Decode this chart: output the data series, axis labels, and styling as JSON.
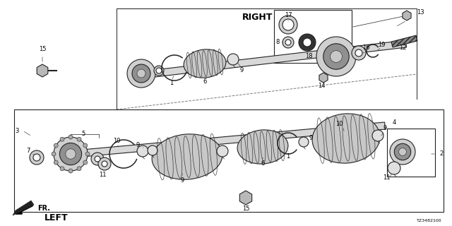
{
  "bg_color": "#ffffff",
  "line_color": "#222222",
  "diagram_id": "TZ3482100",
  "figsize": [
    6.4,
    3.2
  ],
  "dpi": 100,
  "right_label": "RIGHT",
  "left_label": "LEFT",
  "fr_label": "FR."
}
